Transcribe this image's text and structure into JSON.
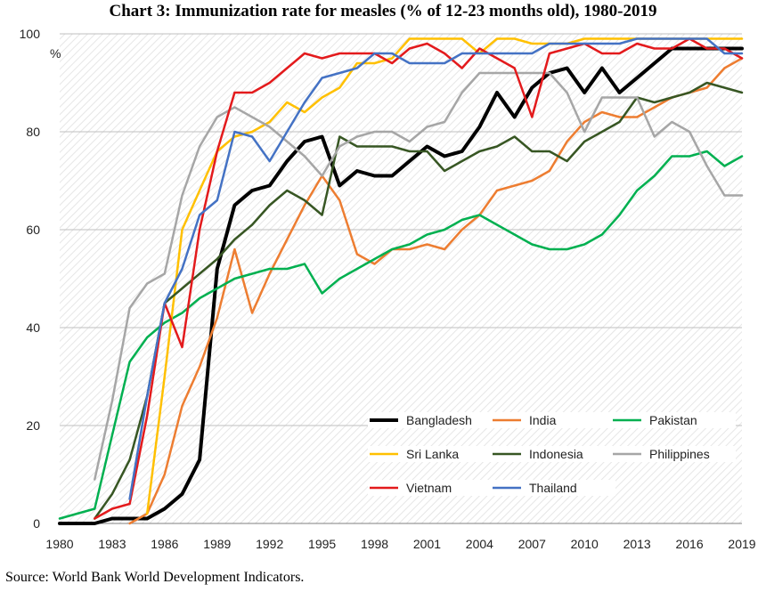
{
  "title": "Chart 3: Immunization rate for measles (% of 12-23 months old), 1980-2019",
  "source": "Source: World Bank World Development Indicators.",
  "chart_data": {
    "type": "line",
    "title": "Chart 3: Immunization rate for measles (% of 12-23 months old), 1980-2019",
    "xlabel": "",
    "ylabel": "%",
    "ylim": [
      0,
      100
    ],
    "xlim": [
      1980,
      2019
    ],
    "grid": true,
    "legend_position": "lower-right inside plot",
    "yticks": [
      0,
      20,
      40,
      60,
      80,
      100
    ],
    "xticks": [
      1980,
      1983,
      1986,
      1989,
      1992,
      1995,
      1998,
      2001,
      2004,
      2007,
      2010,
      2013,
      2016,
      2019
    ],
    "x": [
      1980,
      1981,
      1982,
      1983,
      1984,
      1985,
      1986,
      1987,
      1988,
      1989,
      1990,
      1991,
      1992,
      1993,
      1994,
      1995,
      1996,
      1997,
      1998,
      1999,
      2000,
      2001,
      2002,
      2003,
      2004,
      2005,
      2006,
      2007,
      2008,
      2009,
      2010,
      2011,
      2012,
      2013,
      2014,
      2015,
      2016,
      2017,
      2018,
      2019
    ],
    "series": [
      {
        "name": "Bangladesh",
        "color": "#000000",
        "width": 4,
        "values": [
          0,
          0,
          0,
          1,
          1,
          1,
          3,
          6,
          13,
          52,
          65,
          68,
          69,
          74,
          78,
          79,
          69,
          72,
          71,
          71,
          74,
          77,
          75,
          76,
          81,
          88,
          83,
          89,
          92,
          93,
          88,
          93,
          88,
          91,
          94,
          97,
          97,
          97,
          97,
          97
        ]
      },
      {
        "name": "India",
        "color": "#ed7d31",
        "width": 2.5,
        "values": [
          null,
          null,
          null,
          null,
          0,
          2,
          10,
          24,
          32,
          42,
          56,
          43,
          51,
          58,
          65,
          71,
          66,
          55,
          53,
          56,
          56,
          57,
          56,
          60,
          63,
          68,
          69,
          70,
          72,
          78,
          82,
          84,
          83,
          83,
          85,
          87,
          88,
          89,
          93,
          95
        ]
      },
      {
        "name": "Pakistan",
        "color": "#00b050",
        "width": 2.5,
        "values": [
          1,
          2,
          3,
          18,
          33,
          38,
          41,
          43,
          46,
          48,
          50,
          51,
          52,
          52,
          53,
          47,
          50,
          52,
          54,
          56,
          57,
          59,
          60,
          62,
          63,
          61,
          59,
          57,
          56,
          56,
          57,
          59,
          63,
          68,
          71,
          75,
          75,
          76,
          73,
          75
        ]
      },
      {
        "name": "Sri Lanka",
        "color": "#ffc000",
        "width": 2.5,
        "values": [
          null,
          null,
          null,
          null,
          null,
          2,
          30,
          60,
          68,
          76,
          79,
          80,
          82,
          86,
          84,
          87,
          89,
          94,
          94,
          95,
          99,
          99,
          99,
          99,
          96,
          99,
          99,
          98,
          98,
          98,
          99,
          99,
          99,
          99,
          99,
          99,
          99,
          99,
          99,
          99
        ]
      },
      {
        "name": "Indonesia",
        "color": "#375623",
        "width": 2.5,
        "values": [
          null,
          null,
          1,
          6,
          13,
          26,
          45,
          48,
          51,
          54,
          58,
          61,
          65,
          68,
          66,
          63,
          79,
          77,
          77,
          77,
          76,
          76,
          72,
          74,
          76,
          77,
          79,
          76,
          76,
          74,
          78,
          80,
          82,
          87,
          86,
          87,
          88,
          90,
          89,
          88
        ]
      },
      {
        "name": "Philippines",
        "color": "#a6a6a6",
        "width": 2.5,
        "values": [
          null,
          null,
          9,
          25,
          44,
          49,
          51,
          67,
          77,
          83,
          85,
          83,
          81,
          78,
          75,
          71,
          77,
          79,
          80,
          80,
          78,
          81,
          82,
          88,
          92,
          92,
          92,
          92,
          92,
          88,
          80,
          87,
          87,
          87,
          79,
          82,
          80,
          73,
          67,
          67
        ]
      },
      {
        "name": "Vietnam",
        "color": "#e31a1c",
        "width": 2.5,
        "values": [
          null,
          null,
          1,
          3,
          4,
          22,
          45,
          36,
          60,
          76,
          88,
          88,
          90,
          93,
          96,
          95,
          96,
          96,
          96,
          94,
          97,
          98,
          96,
          93,
          97,
          95,
          93,
          83,
          96,
          97,
          98,
          96,
          96,
          98,
          97,
          97,
          99,
          97,
          97,
          95
        ]
      },
      {
        "name": "Thailand",
        "color": "#4472c4",
        "width": 2.5,
        "values": [
          null,
          null,
          null,
          null,
          5,
          26,
          45,
          52,
          63,
          66,
          80,
          79,
          74,
          80,
          86,
          91,
          92,
          93,
          96,
          96,
          94,
          94,
          94,
          96,
          96,
          96,
          96,
          96,
          98,
          98,
          98,
          98,
          98,
          99,
          99,
          99,
          99,
          99,
          96,
          96
        ]
      }
    ]
  }
}
